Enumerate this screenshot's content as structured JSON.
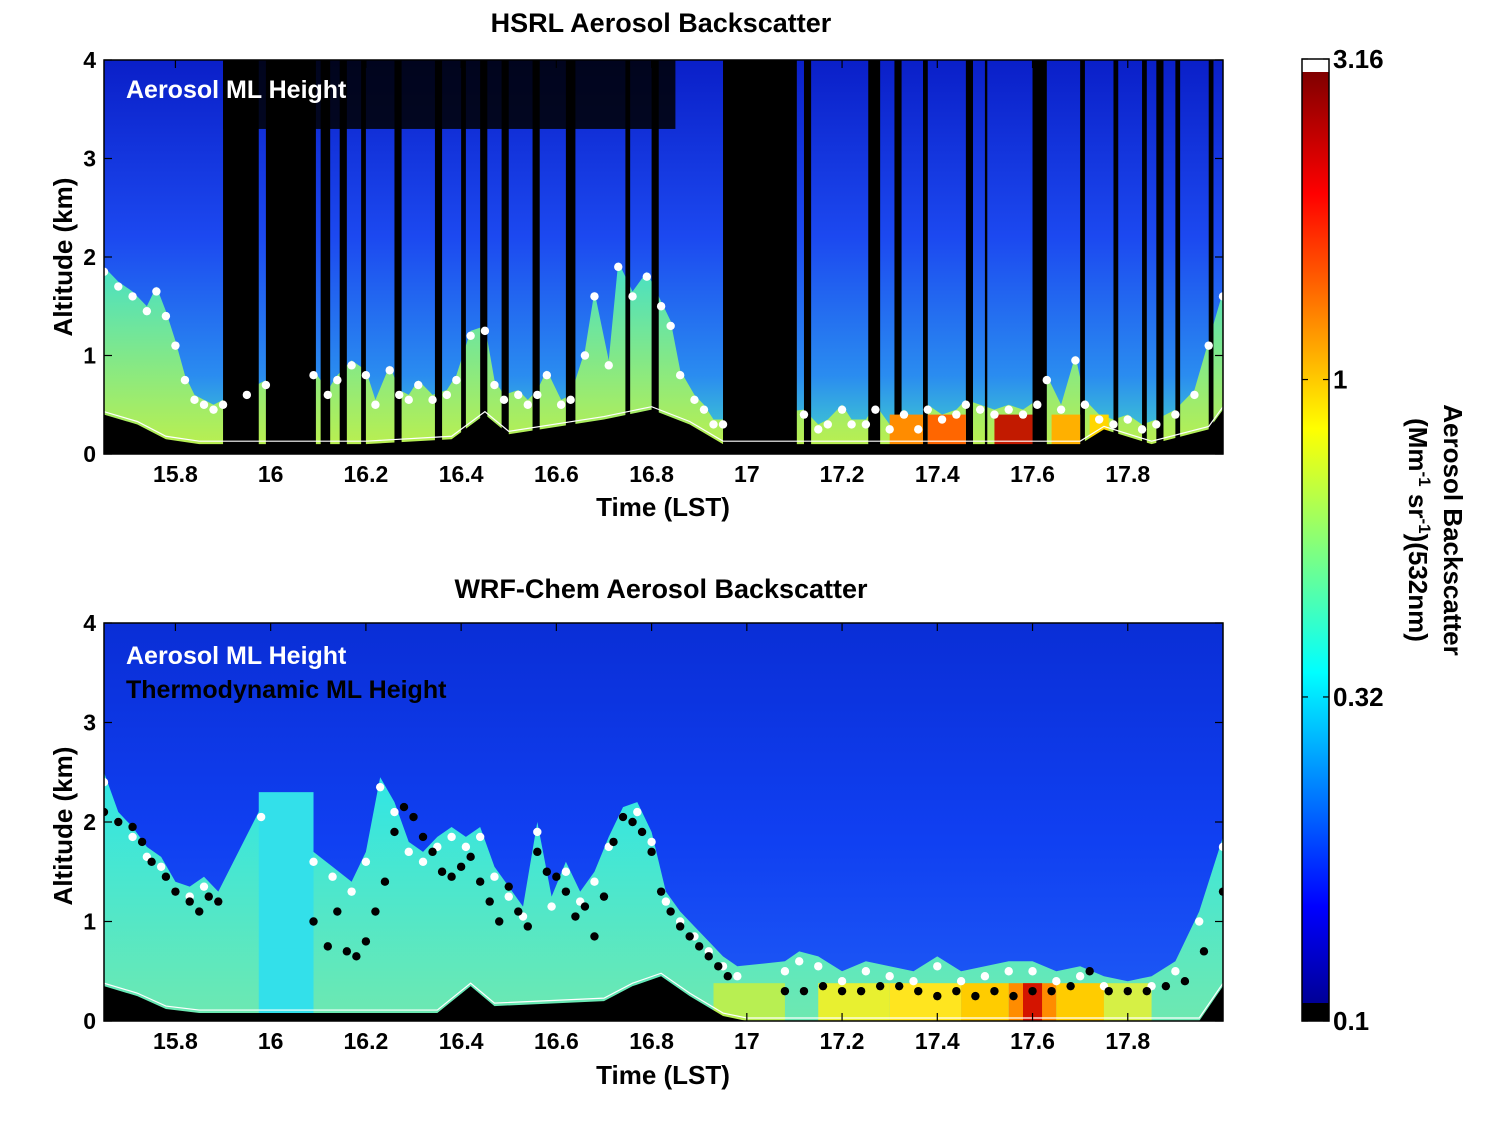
{
  "chart_data": [
    {
      "type": "heatmap",
      "title": "HSRL Aerosol Backscatter",
      "xlabel": "Time (LST)",
      "ylabel": "Altitude (km)",
      "xlim": [
        15.65,
        18.0
      ],
      "ylim": [
        0,
        4
      ],
      "xticks": [
        15.8,
        16.0,
        16.2,
        16.4,
        16.6,
        16.8,
        17.0,
        17.2,
        17.4,
        17.6,
        17.8
      ],
      "xtick_labels": [
        "15.8",
        "16",
        "16.2",
        "16.4",
        "16.6",
        "16.8",
        "17",
        "17.2",
        "17.4",
        "17.6",
        "17.8"
      ],
      "yticks": [
        0,
        1,
        2,
        3,
        4
      ],
      "ytick_labels": [
        "0",
        "1",
        "2",
        "3",
        "4"
      ],
      "legend": [
        "Aerosol ML Height"
      ],
      "series": [
        {
          "name": "Aerosol ML Height",
          "color": "#ffffff",
          "x": [
            15.65,
            15.68,
            15.71,
            15.74,
            15.76,
            15.78,
            15.8,
            15.82,
            15.84,
            15.86,
            15.88,
            15.9,
            15.95,
            15.99,
            16.09,
            16.12,
            16.14,
            16.17,
            16.2,
            16.22,
            16.25,
            16.27,
            16.29,
            16.31,
            16.34,
            16.37,
            16.39,
            16.42,
            16.45,
            16.47,
            16.49,
            16.52,
            16.54,
            16.56,
            16.58,
            16.61,
            16.63,
            16.66,
            16.68,
            16.71,
            16.73,
            16.76,
            16.79,
            16.82,
            16.84,
            16.86,
            16.89,
            16.91,
            16.93,
            16.95,
            17.12,
            17.15,
            17.17,
            17.2,
            17.22,
            17.25,
            17.27,
            17.3,
            17.33,
            17.36,
            17.38,
            17.41,
            17.44,
            17.46,
            17.49,
            17.52,
            17.55,
            17.58,
            17.61,
            17.63,
            17.66,
            17.69,
            17.71,
            17.74,
            17.77,
            17.8,
            17.83,
            17.86,
            17.9,
            17.94,
            17.97,
            18.0
          ],
          "y": [
            1.85,
            1.7,
            1.6,
            1.45,
            1.65,
            1.4,
            1.1,
            0.75,
            0.55,
            0.5,
            0.45,
            0.5,
            0.6,
            0.7,
            0.8,
            0.6,
            0.75,
            0.9,
            0.8,
            0.5,
            0.85,
            0.6,
            0.55,
            0.7,
            0.55,
            0.6,
            0.75,
            1.2,
            1.25,
            0.7,
            0.55,
            0.6,
            0.5,
            0.6,
            0.8,
            0.5,
            0.55,
            1.0,
            1.6,
            0.9,
            1.9,
            1.6,
            1.8,
            1.5,
            1.3,
            0.8,
            0.55,
            0.45,
            0.3,
            0.3,
            0.4,
            0.25,
            0.3,
            0.45,
            0.3,
            0.3,
            0.45,
            0.25,
            0.4,
            0.25,
            0.45,
            0.35,
            0.4,
            0.5,
            0.45,
            0.4,
            0.45,
            0.4,
            0.5,
            0.75,
            0.45,
            0.95,
            0.5,
            0.35,
            0.3,
            0.35,
            0.25,
            0.3,
            0.4,
            0.6,
            1.1,
            1.6
          ]
        }
      ]
    },
    {
      "type": "heatmap",
      "title": "WRF-Chem Aerosol Backscatter",
      "xlabel": "Time (LST)",
      "ylabel": "Altitude (km)",
      "xlim": [
        15.65,
        18.0
      ],
      "ylim": [
        0,
        4
      ],
      "xticks": [
        15.8,
        16.0,
        16.2,
        16.4,
        16.6,
        16.8,
        17.0,
        17.2,
        17.4,
        17.6,
        17.8
      ],
      "xtick_labels": [
        "15.8",
        "16",
        "16.2",
        "16.4",
        "16.6",
        "16.8",
        "17",
        "17.2",
        "17.4",
        "17.6",
        "17.8"
      ],
      "yticks": [
        0,
        1,
        2,
        3,
        4
      ],
      "ytick_labels": [
        "0",
        "1",
        "2",
        "3",
        "4"
      ],
      "legend": [
        "Aerosol ML Height",
        "Thermodynamic ML Height"
      ],
      "series": [
        {
          "name": "Aerosol ML Height",
          "color": "#ffffff",
          "x": [
            15.65,
            15.68,
            15.71,
            15.74,
            15.77,
            15.8,
            15.83,
            15.86,
            15.89,
            15.98,
            16.09,
            16.13,
            16.17,
            16.2,
            16.23,
            16.26,
            16.29,
            16.32,
            16.35,
            16.38,
            16.41,
            16.44,
            16.47,
            16.5,
            16.53,
            16.56,
            16.59,
            16.62,
            16.65,
            16.68,
            16.71,
            16.74,
            16.77,
            16.8,
            16.83,
            16.86,
            16.89,
            16.92,
            16.95,
            16.98,
            17.08,
            17.11,
            17.15,
            17.2,
            17.25,
            17.3,
            17.35,
            17.4,
            17.45,
            17.5,
            17.55,
            17.6,
            17.65,
            17.7,
            17.75,
            17.8,
            17.85,
            17.9,
            17.95,
            18.0
          ],
          "y": [
            2.4,
            2.0,
            1.85,
            1.65,
            1.55,
            1.3,
            1.25,
            1.35,
            1.2,
            2.05,
            1.6,
            1.45,
            1.3,
            1.6,
            2.35,
            2.1,
            1.7,
            1.6,
            1.75,
            1.85,
            1.75,
            1.85,
            1.45,
            1.25,
            1.05,
            1.9,
            1.15,
            1.5,
            1.2,
            1.4,
            1.75,
            2.05,
            2.1,
            1.8,
            1.2,
            1.0,
            0.85,
            0.7,
            0.55,
            0.45,
            0.5,
            0.6,
            0.55,
            0.4,
            0.5,
            0.45,
            0.4,
            0.55,
            0.4,
            0.45,
            0.5,
            0.5,
            0.4,
            0.45,
            0.35,
            0.3,
            0.35,
            0.5,
            1.0,
            1.75
          ]
        },
        {
          "name": "Thermodynamic ML Height",
          "color": "#000000",
          "x": [
            15.65,
            15.68,
            15.71,
            15.73,
            15.75,
            15.78,
            15.8,
            15.83,
            15.85,
            15.87,
            15.89,
            16.09,
            16.12,
            16.14,
            16.16,
            16.18,
            16.2,
            16.22,
            16.24,
            16.26,
            16.28,
            16.3,
            16.32,
            16.34,
            16.36,
            16.38,
            16.4,
            16.42,
            16.44,
            16.46,
            16.48,
            16.5,
            16.52,
            16.54,
            16.56,
            16.58,
            16.6,
            16.62,
            16.64,
            16.66,
            16.68,
            16.7,
            16.72,
            16.74,
            16.76,
            16.78,
            16.8,
            16.82,
            16.84,
            16.86,
            16.88,
            16.9,
            16.92,
            16.94,
            16.96,
            17.08,
            17.12,
            17.16,
            17.2,
            17.24,
            17.28,
            17.32,
            17.36,
            17.4,
            17.44,
            17.48,
            17.52,
            17.56,
            17.6,
            17.64,
            17.68,
            17.72,
            17.76,
            17.8,
            17.84,
            17.88,
            17.92,
            17.96,
            18.0
          ],
          "y": [
            2.1,
            2.0,
            1.95,
            1.8,
            1.6,
            1.45,
            1.3,
            1.2,
            1.1,
            1.25,
            1.2,
            1.0,
            0.75,
            1.1,
            0.7,
            0.65,
            0.8,
            1.1,
            1.4,
            1.9,
            2.15,
            2.05,
            1.85,
            1.7,
            1.5,
            1.45,
            1.55,
            1.65,
            1.4,
            1.2,
            1.0,
            1.35,
            1.1,
            0.95,
            1.7,
            1.5,
            1.45,
            1.3,
            1.05,
            1.15,
            0.85,
            1.25,
            1.8,
            2.05,
            2.0,
            1.9,
            1.7,
            1.3,
            1.1,
            0.95,
            0.85,
            0.75,
            0.65,
            0.55,
            0.45,
            0.3,
            0.3,
            0.35,
            0.3,
            0.3,
            0.35,
            0.35,
            0.3,
            0.25,
            0.3,
            0.25,
            0.3,
            0.25,
            0.3,
            0.3,
            0.35,
            0.5,
            0.3,
            0.3,
            0.3,
            0.35,
            0.4,
            0.7,
            1.3
          ]
        }
      ]
    },
    {
      "type": "colorbar",
      "label_line1": "Aerosol Backscatter",
      "label_line2_parts": [
        "(Mm",
        "-1",
        " sr",
        "-1",
        ")(532nm)"
      ],
      "scale": "log",
      "lim": [
        0.1,
        3.16
      ],
      "ticks": [
        0.1,
        0.32,
        1,
        3.16
      ],
      "tick_labels": [
        "0.1",
        "0.32",
        "1",
        "3.16"
      ],
      "colormap": "jet"
    }
  ]
}
